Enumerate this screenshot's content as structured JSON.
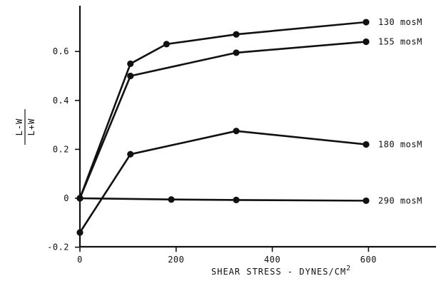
{
  "chart_data": {
    "type": "line",
    "title": "",
    "xlabel": "SHEAR STRESS - DYNES/CM",
    "xlabel_superscript": "2",
    "ylabel": "L-W/L+W",
    "ylabel_numerator": "L-W",
    "ylabel_denominator": "L+W",
    "xlim": [
      0,
      750
    ],
    "ylim": [
      -0.2,
      0.78
    ],
    "xticks": [
      0,
      200,
      400,
      600
    ],
    "xtick_labels": [
      "0",
      "200",
      "400",
      "600"
    ],
    "yticks": [
      -0.2,
      0,
      0.2,
      0.4,
      0.6
    ],
    "ytick_labels": [
      "-0.2",
      "0",
      "0.2",
      "0.4",
      "0.6"
    ],
    "grid": false,
    "legend": "none (series labeled at right end of each line)",
    "series": [
      {
        "name": "130 mosM",
        "x": [
          0,
          105,
          180,
          325,
          595
        ],
        "y": [
          0.0,
          0.55,
          0.63,
          0.67,
          0.72
        ]
      },
      {
        "name": "155 mosM",
        "x": [
          0,
          105,
          325,
          595
        ],
        "y": [
          0.0,
          0.5,
          0.595,
          0.64
        ]
      },
      {
        "name": "180 mosM",
        "x": [
          0,
          105,
          325,
          595
        ],
        "y": [
          -0.14,
          0.18,
          0.275,
          0.22
        ]
      },
      {
        "name": "290 mosM",
        "x": [
          0,
          190,
          325,
          595
        ],
        "y": [
          0.0,
          -0.005,
          -0.007,
          -0.01
        ]
      }
    ]
  }
}
